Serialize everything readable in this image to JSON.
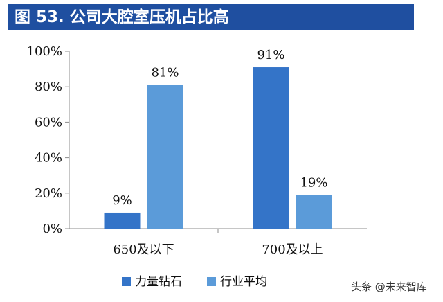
{
  "header": {
    "title": "图 53. 公司大腔室压机占比高"
  },
  "chart_data": {
    "type": "bar",
    "categories": [
      "650及以下",
      "700及以上"
    ],
    "series": [
      {
        "name": "力量钻石",
        "color": "#3474c8",
        "values": [
          9,
          91
        ],
        "labels": [
          "9%",
          "91%"
        ]
      },
      {
        "name": "行业平均",
        "color": "#5b9bd9",
        "values": [
          81,
          19
        ],
        "labels": [
          "81%",
          "19%"
        ]
      }
    ],
    "ylim": [
      0,
      100
    ],
    "yticks": [
      "0%",
      "20%",
      "40%",
      "60%",
      "80%",
      "100%"
    ],
    "legend_position": "bottom",
    "grid": false
  },
  "watermark": "头条 @未来智库"
}
